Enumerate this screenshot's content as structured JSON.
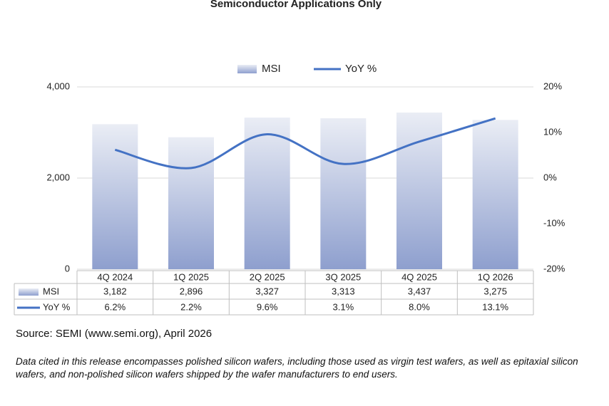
{
  "chart_data": {
    "type": "combo",
    "title": "Semiconductor Applications Only",
    "categories": [
      "4Q 2024",
      "1Q 2025",
      "2Q 2025",
      "3Q 2025",
      "4Q 2025",
      "1Q 2026"
    ],
    "series": [
      {
        "name": "MSI",
        "type": "bar",
        "color": "#8e9fce",
        "values": [
          3182,
          2896,
          3327,
          3313,
          3437,
          3275
        ],
        "value_labels": [
          "3,182",
          "2,896",
          "3,327",
          "3,313",
          "3,437",
          "3,275"
        ]
      },
      {
        "name": "YoY %",
        "type": "line",
        "axis": "y2",
        "color": "#4472c4",
        "values": [
          6.2,
          2.2,
          9.6,
          3.1,
          8.0,
          13.1
        ],
        "value_labels": [
          "6.2%",
          "2.2%",
          "9.6%",
          "3.1%",
          "8.0%",
          "13.1%"
        ]
      }
    ],
    "ylim": [
      0,
      4000
    ],
    "yticks": [
      0,
      {
        "value": 2000,
        "label": "2,000"
      },
      {
        "value": 4000,
        "label": "4,000"
      }
    ],
    "y2lim": [
      -20,
      20
    ],
    "y2ticks": [
      {
        "value": 20,
        "label": "20%"
      },
      {
        "value": 10,
        "label": "10%"
      },
      {
        "value": 0,
        "label": "0%"
      },
      {
        "value": -10,
        "label": "-10%"
      },
      {
        "value": -20,
        "label": "-20%"
      }
    ],
    "grid": true,
    "legend": "top"
  },
  "source": "Source: SEMI (www.semi.org), April 2026",
  "note": "Data cited in this release encompasses polished silicon wafers, including those used as virgin test wafers, as well as epitaxial silicon wafers, and non-polished silicon wafers shipped by the wafer manufacturers to end users."
}
